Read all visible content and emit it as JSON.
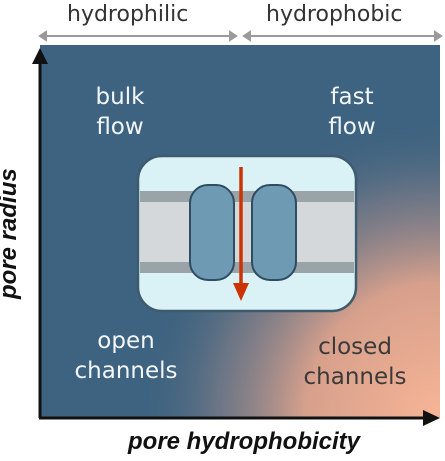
{
  "header": {
    "hydrophilic_label": "hydrophilic",
    "hydrophobic_label": "hydrophobic"
  },
  "regions": {
    "top_left": {
      "line1": "bulk",
      "line2": "flow"
    },
    "top_right": {
      "line1": "fast",
      "line2": "flow"
    },
    "bottom_left": {
      "line1": "open",
      "line2": "channels"
    },
    "bottom_right": {
      "line1": "closed",
      "line2": "channels"
    }
  },
  "axes": {
    "x_label": "pore hydrophobicity",
    "y_label": "pore radius"
  },
  "colors": {
    "panel_blue": "#3e6380",
    "panel_peach": "#f5b294",
    "channel_box": "#daf1f5",
    "membrane": "#cfd4d8",
    "protein": "#6f9ab4",
    "arrow": "#cc3300"
  }
}
